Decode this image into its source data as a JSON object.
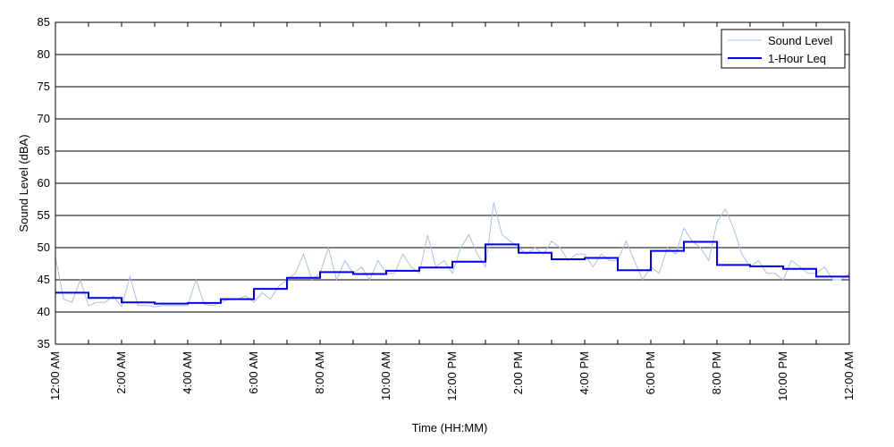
{
  "chart_data": {
    "type": "line",
    "title": "",
    "xlabel": "Time (HH:MM)",
    "ylabel": "Sound Level (dBA)",
    "ylim": [
      35,
      85
    ],
    "yticks": [
      35,
      40,
      45,
      50,
      55,
      60,
      65,
      70,
      75,
      80,
      85
    ],
    "xlim_hours": [
      0,
      24
    ],
    "x_tick_labels": [
      "12:00 AM",
      "2:00 AM",
      "4:00 AM",
      "6:00 AM",
      "8:00 AM",
      "10:00 AM",
      "12:00 PM",
      "2:00 PM",
      "4:00 PM",
      "6:00 PM",
      "8:00 PM",
      "10:00 PM",
      "12:00 AM"
    ],
    "grid": "horizontal",
    "legend_position": "top-right",
    "colors": {
      "sound_level": "#a9c0ec",
      "leq": "#0000ee"
    },
    "series": [
      {
        "name": "Sound Level",
        "style": "thin-line",
        "x_hours": [
          0,
          0.25,
          0.5,
          0.75,
          1,
          1.25,
          1.5,
          1.75,
          2,
          2.25,
          2.5,
          2.75,
          3,
          3.25,
          3.5,
          3.75,
          4,
          4.25,
          4.5,
          4.75,
          5,
          5.25,
          5.5,
          5.75,
          6,
          6.25,
          6.5,
          6.75,
          7,
          7.25,
          7.5,
          7.75,
          8,
          8.25,
          8.5,
          8.75,
          9,
          9.25,
          9.5,
          9.75,
          10,
          10.25,
          10.5,
          10.75,
          11,
          11.25,
          11.5,
          11.75,
          12,
          12.25,
          12.5,
          12.75,
          13,
          13.25,
          13.5,
          13.75,
          14,
          14.25,
          14.5,
          14.75,
          15,
          15.25,
          15.5,
          15.75,
          16,
          16.25,
          16.5,
          16.75,
          17,
          17.25,
          17.5,
          17.75,
          18,
          18.25,
          18.5,
          18.75,
          19,
          19.25,
          19.5,
          19.75,
          20,
          20.25,
          20.5,
          20.75,
          21,
          21.25,
          21.5,
          21.75,
          22,
          22.25,
          22.5,
          22.75,
          23,
          23.25,
          23.5,
          23.75,
          24
        ],
        "values": [
          48.5,
          42,
          41.5,
          45,
          41,
          41.5,
          41.5,
          42.5,
          40.8,
          45.5,
          41,
          41,
          40.8,
          41,
          41,
          41,
          41,
          45,
          41.2,
          41,
          41.5,
          42,
          42,
          42.5,
          41.5,
          43,
          42,
          44,
          45,
          46,
          49,
          45,
          46,
          50,
          45,
          48,
          46,
          47,
          45,
          48,
          46,
          46,
          49,
          47,
          46,
          52,
          47,
          48,
          46,
          50,
          52,
          49,
          47,
          57,
          52,
          51,
          50,
          49,
          50,
          49,
          51,
          50,
          48,
          49,
          49,
          47,
          49,
          48,
          48,
          51,
          48,
          45,
          47,
          46,
          50,
          49,
          53,
          51,
          50,
          48,
          54,
          56,
          53,
          49,
          47,
          48,
          46,
          46,
          45,
          48,
          47,
          46,
          46,
          47,
          45,
          45,
          46
        ]
      },
      {
        "name": "1-Hour Leq",
        "style": "step",
        "hour_start": [
          0,
          1,
          2,
          3,
          4,
          5,
          6,
          7,
          8,
          9,
          10,
          11,
          12,
          13,
          14,
          15,
          16,
          17,
          18,
          19,
          20,
          21,
          22,
          23
        ],
        "values": [
          43.0,
          42.2,
          41.5,
          41.3,
          41.4,
          42.0,
          43.6,
          45.3,
          46.2,
          45.9,
          46.4,
          46.9,
          47.8,
          50.5,
          49.2,
          48.2,
          48.4,
          46.5,
          49.5,
          50.9,
          47.3,
          47.1,
          46.7,
          45.5
        ]
      }
    ]
  }
}
